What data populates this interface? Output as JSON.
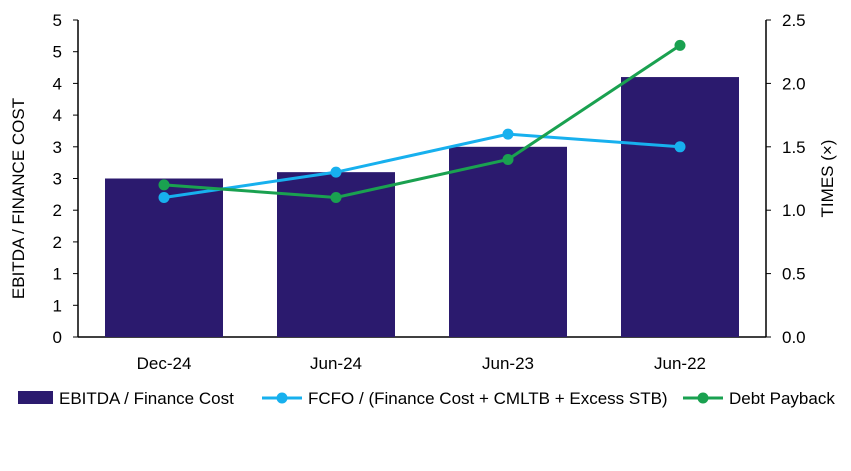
{
  "chart_data": {
    "type": "bar",
    "categories": [
      "Dec-24",
      "Jun-24",
      "Jun-23",
      "Jun-22"
    ],
    "left_axis": {
      "label": "EBITDA / FINANCE COST",
      "ylim": [
        0,
        5
      ],
      "tick_values": [
        0,
        0.5,
        1,
        1.5,
        2,
        2.5,
        3,
        3.5,
        4,
        4.5,
        5
      ],
      "tick_labels": [
        "0",
        "1",
        "1",
        "2",
        "2",
        "3",
        "3",
        "4",
        "4",
        "5",
        "5"
      ]
    },
    "right_axis": {
      "label": "TIMES (×)",
      "ylim": [
        0,
        2.5
      ],
      "tick_values": [
        0,
        0.5,
        1,
        1.5,
        2,
        2.5
      ],
      "tick_labels": [
        "0.0",
        "0.5",
        "1.0",
        "1.5",
        "2.0",
        "2.5"
      ]
    },
    "series": [
      {
        "name": "EBITDA / Finance Cost",
        "type": "bar",
        "axis": "left",
        "color": "#2b1a6e",
        "values": [
          2.5,
          2.6,
          3.0,
          4.1
        ]
      },
      {
        "name": "FCFO / (Finance Cost + CMLTB + Excess STB)",
        "type": "line",
        "axis": "right",
        "color": "#17b0ee",
        "values": [
          1.1,
          1.3,
          1.6,
          1.5
        ]
      },
      {
        "name": "Debt Payback",
        "type": "line",
        "axis": "right",
        "color": "#1aa150",
        "values": [
          1.2,
          1.1,
          1.4,
          2.3
        ]
      }
    ],
    "grid": false,
    "legend_position": "bottom"
  }
}
